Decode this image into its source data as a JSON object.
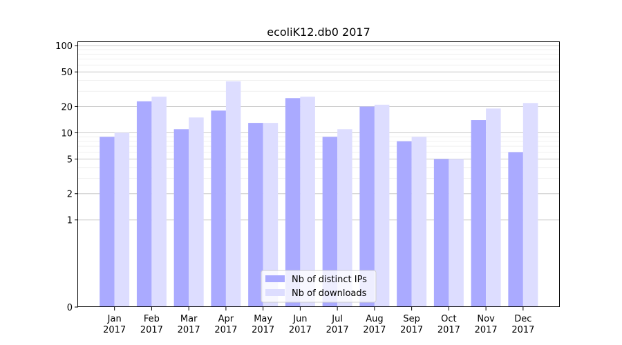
{
  "chart_data": {
    "type": "bar",
    "title": "ecoliK12.db0 2017",
    "xlabel": "",
    "ylabel": "",
    "categories": [
      [
        "Jan",
        "2017"
      ],
      [
        "Feb",
        "2017"
      ],
      [
        "Mar",
        "2017"
      ],
      [
        "Apr",
        "2017"
      ],
      [
        "May",
        "2017"
      ],
      [
        "Jun",
        "2017"
      ],
      [
        "Jul",
        "2017"
      ],
      [
        "Aug",
        "2017"
      ],
      [
        "Sep",
        "2017"
      ],
      [
        "Oct",
        "2017"
      ],
      [
        "Nov",
        "2017"
      ],
      [
        "Dec",
        "2017"
      ]
    ],
    "series": [
      {
        "name": "Nb of distinct IPs",
        "color": "#aaaaff",
        "values": [
          9,
          23,
          11,
          18,
          13,
          25,
          9,
          20,
          8,
          5,
          14,
          6
        ]
      },
      {
        "name": "Nb of downloads",
        "color": "#ddddff",
        "values": [
          10,
          26,
          15,
          39,
          13,
          26,
          11,
          21,
          9,
          5,
          19,
          22
        ]
      }
    ],
    "yscale": "symlog",
    "ylim": [
      0,
      110
    ],
    "yticks": [
      0,
      1,
      2,
      5,
      10,
      20,
      50,
      100
    ],
    "grid": true,
    "legend_position": "bottom-center"
  }
}
